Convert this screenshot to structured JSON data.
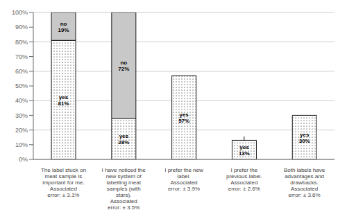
{
  "chart_data": {
    "type": "bar",
    "stacked": true,
    "grid": true,
    "categories": [
      "The label stuck on\nmeat sample is\nimportant for me.\nAssociated\nerror: ± 3.1%",
      "I have noticed the\nnew system of\nlabelling meat\nsamples (with\nstars).\nAssociated\nerror: ± 3.5%",
      "I prefer the new\nlabel.\nAssociated\nerror: ± 3.9%",
      "I prefer the\nprevious label.\nAssociated\nerror: ± 2.6%",
      "Both labels have\nadvantages and\ndrawbacks.\nAssociated\nerror: ± 3.6%"
    ],
    "series": [
      {
        "name": "yes",
        "color": "#ffffff",
        "values": [
          81,
          28,
          57,
          13,
          30
        ],
        "value_labels": [
          "yes\n81%",
          "yes\n28%",
          "yes\n57%",
          "yes\n13%",
          "yes\n30%"
        ],
        "errors": [
          null,
          null,
          null,
          2.6,
          null
        ]
      },
      {
        "name": "no",
        "color": "#c8c8c8",
        "values": [
          19,
          72,
          0,
          0,
          0
        ],
        "value_labels": [
          "no\n19%",
          "no\n72%",
          null,
          null,
          null
        ]
      }
    ],
    "ylim": [
      0,
      100
    ],
    "yticks": [
      {
        "value": 0,
        "label": "0%"
      },
      {
        "value": 10,
        "label": "10%"
      },
      {
        "value": 20,
        "label": "20%"
      },
      {
        "value": 30,
        "label": "30%"
      },
      {
        "value": 40,
        "label": "40%"
      },
      {
        "value": 50,
        "label": "50%"
      },
      {
        "value": 60,
        "label": "60%"
      },
      {
        "value": 70,
        "label": "70%"
      },
      {
        "value": 80,
        "label": "80%"
      },
      {
        "value": 90,
        "label": "90%"
      },
      {
        "value": 100,
        "label": "100%"
      }
    ]
  }
}
